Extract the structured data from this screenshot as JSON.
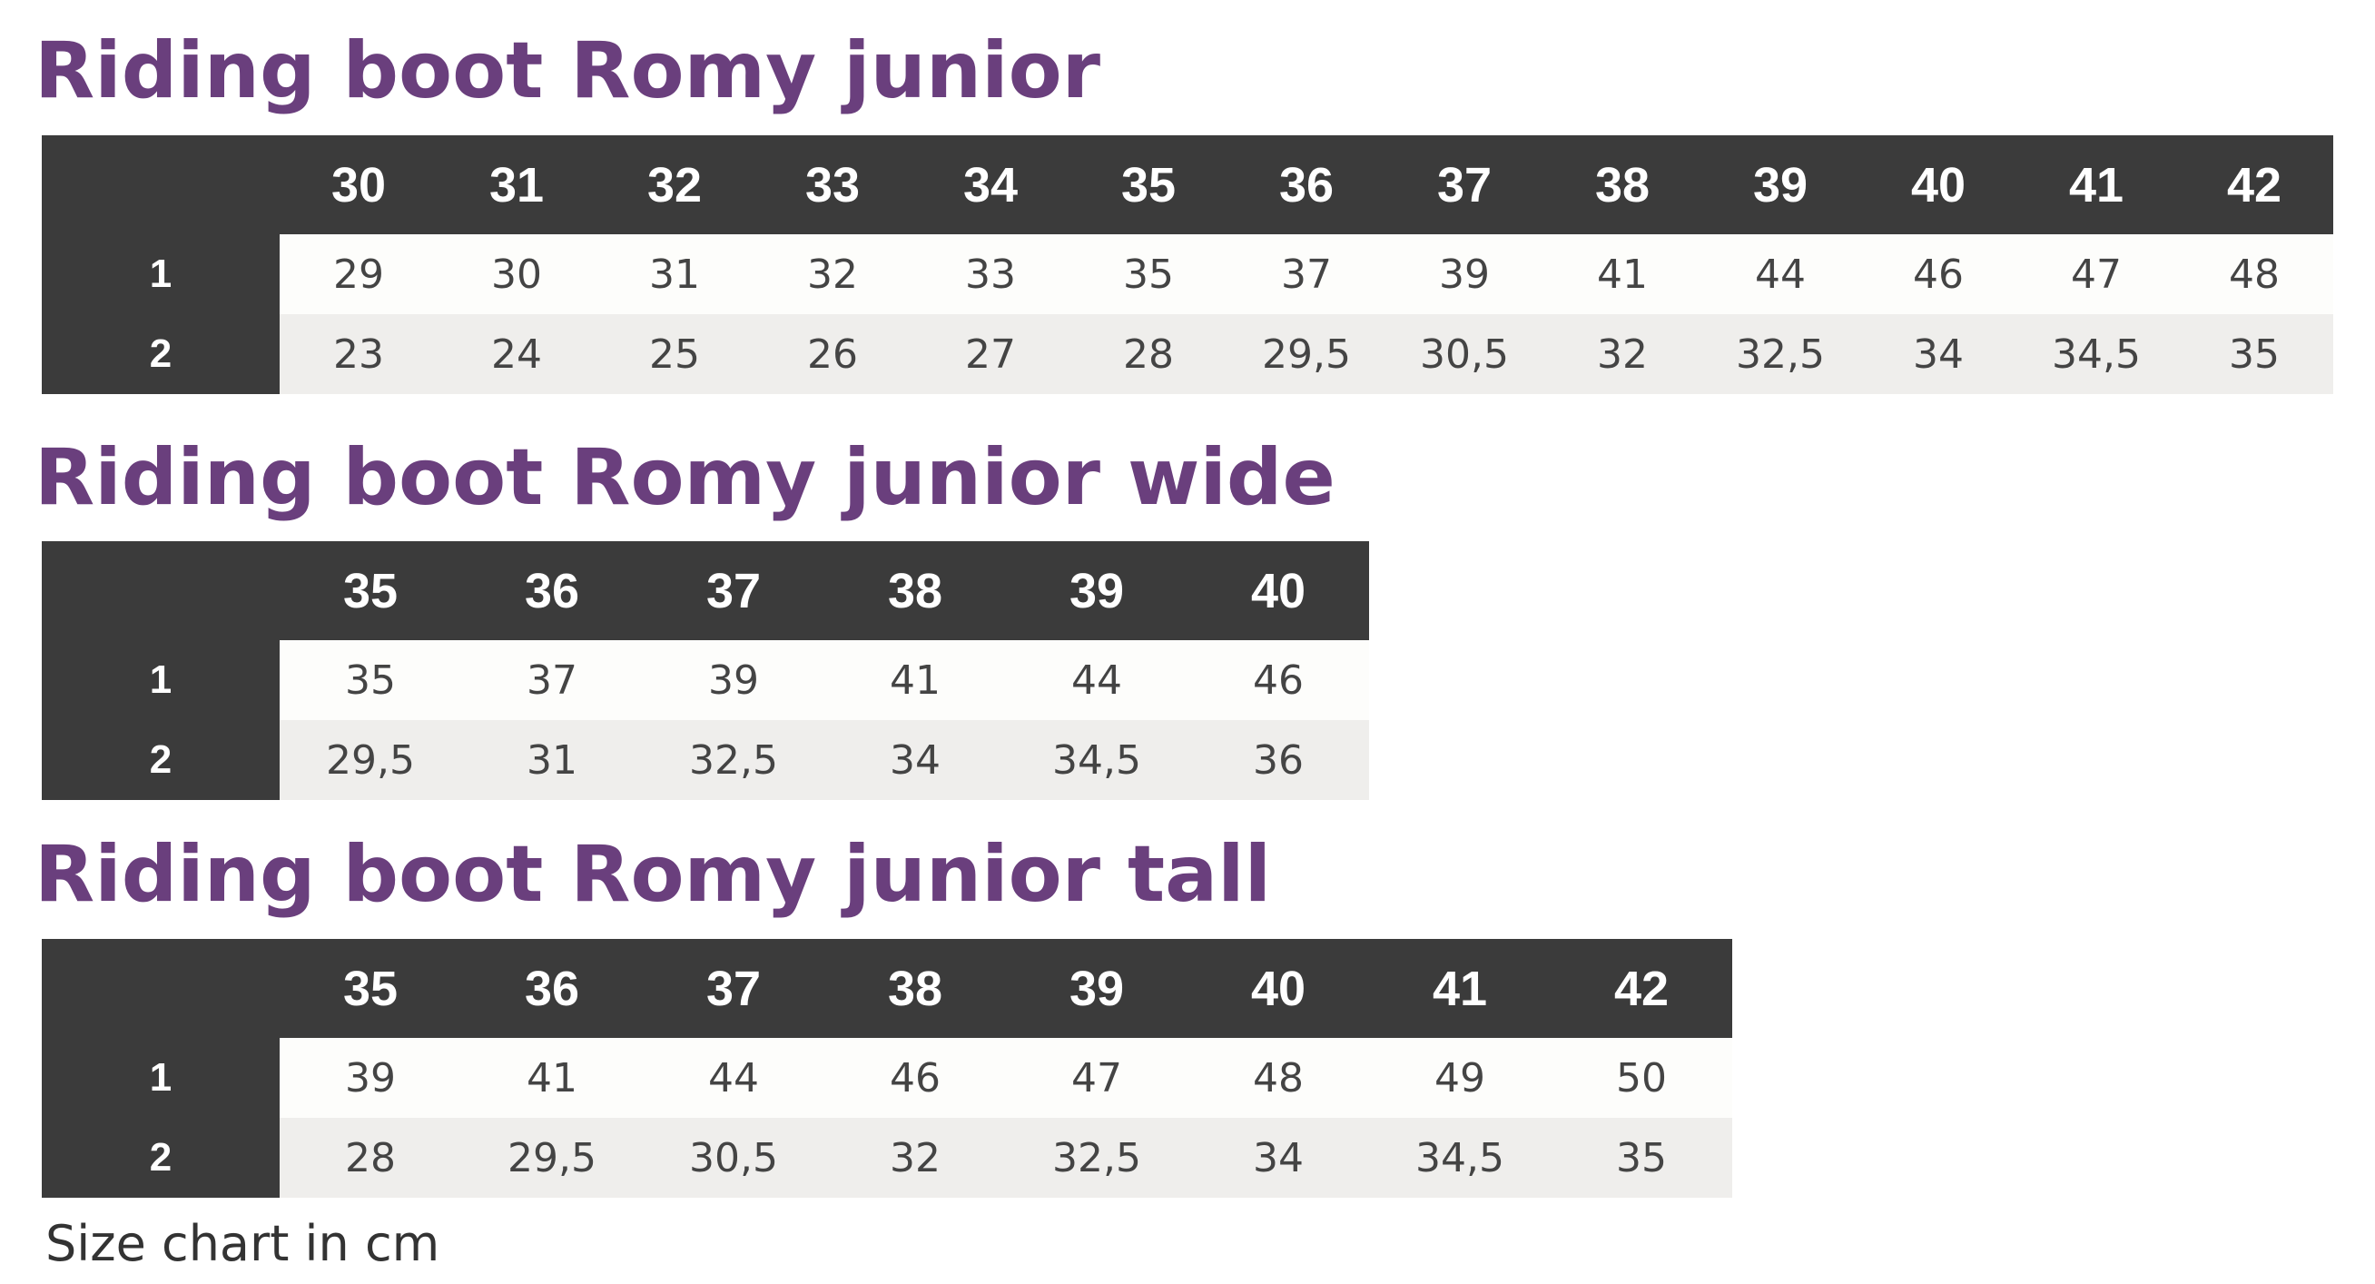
{
  "sections": [
    {
      "title": "Riding boot Romy junior",
      "sizes": [
        "30",
        "31",
        "32",
        "33",
        "34",
        "35",
        "36",
        "37",
        "38",
        "39",
        "40",
        "41",
        "42"
      ],
      "rows": [
        {
          "label": "1",
          "values": [
            "29",
            "30",
            "31",
            "32",
            "33",
            "35",
            "37",
            "39",
            "41",
            "44",
            "46",
            "47",
            "48"
          ]
        },
        {
          "label": "2",
          "values": [
            "23",
            "24",
            "25",
            "26",
            "27",
            "28",
            "29,5",
            "30,5",
            "32",
            "32,5",
            "34",
            "34,5",
            "35"
          ]
        }
      ]
    },
    {
      "title": "Riding boot Romy junior wide",
      "sizes": [
        "35",
        "36",
        "37",
        "38",
        "39",
        "40"
      ],
      "rows": [
        {
          "label": "1",
          "values": [
            "35",
            "37",
            "39",
            "41",
            "44",
            "46"
          ]
        },
        {
          "label": "2",
          "values": [
            "29,5",
            "31",
            "32,5",
            "34",
            "34,5",
            "36"
          ]
        }
      ]
    },
    {
      "title": "Riding boot Romy junior tall",
      "sizes": [
        "35",
        "36",
        "37",
        "38",
        "39",
        "40",
        "41",
        "42"
      ],
      "rows": [
        {
          "label": "1",
          "values": [
            "39",
            "41",
            "44",
            "46",
            "47",
            "48",
            "49",
            "50"
          ]
        },
        {
          "label": "2",
          "values": [
            "28",
            "29,5",
            "30,5",
            "32",
            "32,5",
            "34",
            "34,5",
            "35"
          ]
        }
      ]
    }
  ],
  "footnote": "Size chart in cm",
  "colors": {
    "title": "#6a3f7d",
    "header_background": "#3b3b3b",
    "header_text": "#ffffff",
    "row_1_background": "#fdfdfb",
    "row_2_background": "#efeeec",
    "body_text": "#444444"
  }
}
